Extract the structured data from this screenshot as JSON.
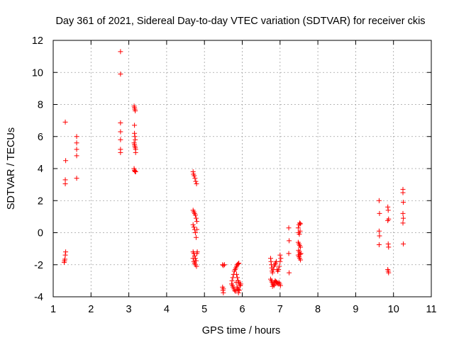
{
  "chart_data": {
    "type": "scatter",
    "title": "Day 361 of 2021, Sidereal Day-to-day VTEC variation (SDTVAR) for receiver ckis",
    "xlabel": "GPS time / hours",
    "ylabel": "SDTVAR / TECUs",
    "xlim": [
      1,
      11
    ],
    "ylim": [
      -4,
      12
    ],
    "xticks": [
      1,
      2,
      3,
      4,
      5,
      6,
      7,
      8,
      9,
      10,
      11
    ],
    "yticks": [
      -4,
      -2,
      0,
      2,
      4,
      6,
      8,
      10,
      12
    ],
    "grid": true,
    "marker": "+",
    "color": "#ff0000",
    "points": [
      [
        1.32,
        6.9
      ],
      [
        1.33,
        4.5
      ],
      [
        1.32,
        3.3
      ],
      [
        1.32,
        3.05
      ],
      [
        1.33,
        -1.2
      ],
      [
        1.32,
        -1.4
      ],
      [
        1.31,
        -1.65
      ],
      [
        1.3,
        -1.75
      ],
      [
        1.29,
        -1.85
      ],
      [
        1.62,
        6.0
      ],
      [
        1.62,
        5.6
      ],
      [
        1.62,
        5.2
      ],
      [
        1.62,
        4.8
      ],
      [
        1.62,
        3.4
      ],
      [
        2.78,
        11.3
      ],
      [
        2.78,
        9.9
      ],
      [
        2.78,
        6.85
      ],
      [
        2.78,
        6.3
      ],
      [
        2.78,
        5.8
      ],
      [
        2.78,
        5.2
      ],
      [
        2.78,
        5.0
      ],
      [
        3.14,
        7.9
      ],
      [
        3.15,
        7.8
      ],
      [
        3.16,
        7.7
      ],
      [
        3.17,
        7.6
      ],
      [
        3.15,
        6.7
      ],
      [
        3.15,
        6.2
      ],
      [
        3.16,
        6.0
      ],
      [
        3.17,
        5.8
      ],
      [
        3.14,
        5.6
      ],
      [
        3.15,
        5.5
      ],
      [
        3.16,
        5.4
      ],
      [
        3.17,
        5.3
      ],
      [
        3.18,
        5.2
      ],
      [
        3.18,
        5.0
      ],
      [
        3.14,
        4.0
      ],
      [
        3.15,
        3.9
      ],
      [
        3.16,
        3.85
      ],
      [
        3.17,
        3.8
      ],
      [
        3.18,
        3.8
      ],
      [
        4.7,
        3.8
      ],
      [
        4.71,
        3.65
      ],
      [
        4.73,
        3.55
      ],
      [
        4.75,
        3.4
      ],
      [
        4.77,
        3.2
      ],
      [
        4.79,
        3.05
      ],
      [
        4.7,
        1.4
      ],
      [
        4.72,
        1.3
      ],
      [
        4.74,
        1.2
      ],
      [
        4.76,
        1.1
      ],
      [
        4.78,
        0.9
      ],
      [
        4.8,
        0.7
      ],
      [
        4.8,
        0.2
      ],
      [
        4.7,
        0.5
      ],
      [
        4.72,
        0.35
      ],
      [
        4.74,
        0.2
      ],
      [
        4.76,
        0.0
      ],
      [
        4.78,
        -0.3
      ],
      [
        4.7,
        -1.2
      ],
      [
        4.72,
        -1.3
      ],
      [
        4.74,
        -1.45
      ],
      [
        4.76,
        -1.6
      ],
      [
        4.78,
        -1.75
      ],
      [
        4.7,
        -1.6
      ],
      [
        4.72,
        -1.8
      ],
      [
        4.74,
        -1.9
      ],
      [
        4.76,
        -2.0
      ],
      [
        4.79,
        -2.1
      ],
      [
        4.8,
        -1.3
      ],
      [
        4.81,
        -1.2
      ],
      [
        5.48,
        -2.0
      ],
      [
        5.5,
        -2.05
      ],
      [
        5.53,
        -2.0
      ],
      [
        5.48,
        -3.4
      ],
      [
        5.5,
        -3.5
      ],
      [
        5.49,
        -3.6
      ],
      [
        5.5,
        -3.75
      ],
      [
        5.72,
        -3.2
      ],
      [
        5.74,
        -3.3
      ],
      [
        5.76,
        -3.4
      ],
      [
        5.78,
        -3.5
      ],
      [
        5.8,
        -3.6
      ],
      [
        5.82,
        -3.65
      ],
      [
        5.73,
        -3.0
      ],
      [
        5.75,
        -2.8
      ],
      [
        5.77,
        -2.6
      ],
      [
        5.79,
        -2.4
      ],
      [
        5.81,
        -2.3
      ],
      [
        5.83,
        -2.2
      ],
      [
        5.85,
        -2.1
      ],
      [
        5.87,
        -2.0
      ],
      [
        5.89,
        -1.95
      ],
      [
        5.91,
        -1.9
      ],
      [
        5.85,
        -2.6
      ],
      [
        5.87,
        -2.8
      ],
      [
        5.89,
        -3.0
      ],
      [
        5.91,
        -3.1
      ],
      [
        5.93,
        -3.2
      ],
      [
        5.95,
        -3.3
      ],
      [
        5.86,
        -3.4
      ],
      [
        5.88,
        -3.5
      ],
      [
        5.9,
        -3.55
      ],
      [
        5.92,
        -3.6
      ],
      [
        5.94,
        -3.3
      ],
      [
        5.84,
        -3.1
      ],
      [
        5.96,
        -3.2
      ],
      [
        5.9,
        -3.75
      ],
      [
        6.75,
        -1.6
      ],
      [
        6.76,
        -1.8
      ],
      [
        6.77,
        -2.0
      ],
      [
        6.78,
        -2.2
      ],
      [
        6.79,
        -2.4
      ],
      [
        6.8,
        -2.5
      ],
      [
        6.82,
        -2.3
      ],
      [
        6.84,
        -2.1
      ],
      [
        6.86,
        -2.0
      ],
      [
        6.88,
        -1.9
      ],
      [
        6.9,
        -1.8
      ],
      [
        6.92,
        -2.3
      ],
      [
        6.94,
        -2.4
      ],
      [
        6.96,
        -2.3
      ],
      [
        6.98,
        -2.1
      ],
      [
        7.0,
        -1.8
      ],
      [
        7.02,
        -1.6
      ],
      [
        7.0,
        -1.4
      ],
      [
        6.75,
        -2.9
      ],
      [
        6.77,
        -3.0
      ],
      [
        6.79,
        -3.1
      ],
      [
        6.81,
        -3.2
      ],
      [
        6.83,
        -3.25
      ],
      [
        6.85,
        -3.1
      ],
      [
        6.87,
        -3.0
      ],
      [
        6.89,
        -3.05
      ],
      [
        6.91,
        -3.1
      ],
      [
        6.93,
        -3.15
      ],
      [
        6.95,
        -3.2
      ],
      [
        6.97,
        -3.1
      ],
      [
        6.99,
        -3.2
      ],
      [
        7.01,
        -3.3
      ],
      [
        6.8,
        -3.35
      ],
      [
        6.84,
        -3.3
      ],
      [
        7.23,
        0.3
      ],
      [
        7.24,
        -0.5
      ],
      [
        7.23,
        -1.3
      ],
      [
        7.24,
        -2.5
      ],
      [
        7.48,
        0.3
      ],
      [
        7.5,
        0.5
      ],
      [
        7.52,
        0.6
      ],
      [
        7.54,
        0.55
      ],
      [
        7.49,
        0.0
      ],
      [
        7.51,
        -0.1
      ],
      [
        7.53,
        0.1
      ],
      [
        7.48,
        -0.6
      ],
      [
        7.5,
        -0.7
      ],
      [
        7.52,
        -0.8
      ],
      [
        7.54,
        -0.9
      ],
      [
        7.49,
        -1.1
      ],
      [
        7.51,
        -1.2
      ],
      [
        7.53,
        -1.35
      ],
      [
        7.48,
        -1.4
      ],
      [
        7.5,
        -1.5
      ],
      [
        7.52,
        -1.6
      ],
      [
        7.54,
        -1.7
      ],
      [
        7.55,
        -1.3
      ],
      [
        9.62,
        2.0
      ],
      [
        9.63,
        1.2
      ],
      [
        9.62,
        0.1
      ],
      [
        9.63,
        -0.2
      ],
      [
        9.62,
        -0.75
      ],
      [
        9.85,
        1.6
      ],
      [
        9.86,
        1.4
      ],
      [
        9.87,
        0.85
      ],
      [
        9.85,
        0.75
      ],
      [
        9.86,
        -0.7
      ],
      [
        9.87,
        -0.9
      ],
      [
        9.85,
        -2.3
      ],
      [
        9.86,
        -2.4
      ],
      [
        9.87,
        -2.5
      ],
      [
        10.25,
        2.7
      ],
      [
        10.25,
        2.5
      ],
      [
        10.26,
        1.9
      ],
      [
        10.25,
        1.2
      ],
      [
        10.26,
        0.9
      ],
      [
        10.25,
        0.6
      ],
      [
        10.26,
        -0.7
      ]
    ]
  }
}
